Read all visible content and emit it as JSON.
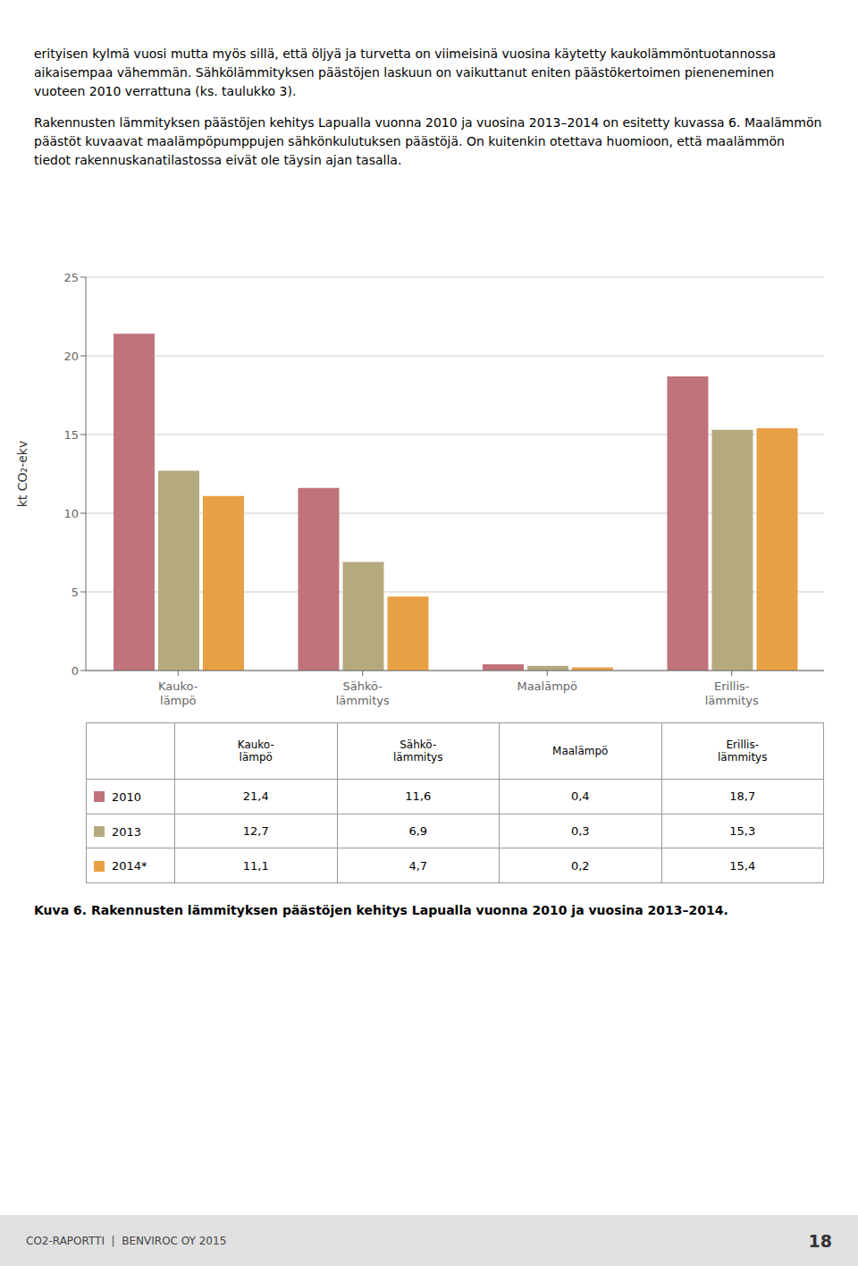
{
  "chart_data": {
    "type": "bar",
    "categories": [
      "Kauko-\nlämpö",
      "Sähkö-\nlämmitys",
      "Maalämpö",
      "Erillis-\nlämmitys"
    ],
    "series": [
      {
        "name": "2010",
        "color": "#c0737a",
        "values": [
          21.4,
          11.6,
          0.4,
          18.7
        ],
        "value_labels": [
          "21,4",
          "11,6",
          "0,4",
          "18,7"
        ]
      },
      {
        "name": "2013",
        "color": "#b5aa7e",
        "values": [
          12.7,
          6.9,
          0.3,
          15.3
        ],
        "value_labels": [
          "12,7",
          "6,9",
          "0,3",
          "15,3"
        ]
      },
      {
        "name": "2014*",
        "color": "#e8a045",
        "values": [
          11.1,
          4.7,
          0.2,
          15.4
        ],
        "value_labels": [
          "11,1",
          "4,7",
          "0,2",
          "15,4"
        ]
      }
    ],
    "ylabel": "kt CO₂-ekv",
    "ylim": [
      0,
      25
    ],
    "yticks": [
      0,
      5,
      10,
      15,
      20,
      25
    ],
    "grid": true,
    "annotations": [
      "erityisen kylmä vuosi mutta myös sillä, että öljyä ja turvetta on viimeisinä vuosina käytetty kaukolämmöntuotannossa aikaisempaa vähemmän. Sähkölämmityksen päästöjen laskuun on vaikuttanut eniten päästökertoimen pieneneminen vuoteen 2010 verrattuna (ks. taulukko 3).",
      "Rakennusten lämmityksen päästöjen kehitys Lapualla vuonna 2010 ja vuosina 2013–2014 on esitetty kuvassa 6. Maalämmön päästöt kuvaavat maalämpöpumppujen sähkönkulutuksen päästöjä. On kuitenkin otettava huomioon, että maalämmön tiedot rakennuskanatilastossa eivät ole täysin ajan tasalla.",
      "Kuva 6. Rakennusten lämmityksen päästöjen kehitys Lapualla vuonna 2010 ja vuosina 2013–2014.",
      "CO2-RAPORTTI  |  BENVIROC OY 2015",
      "18"
    ]
  }
}
